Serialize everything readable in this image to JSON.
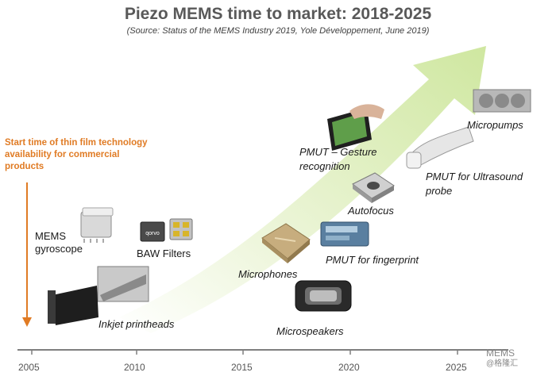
{
  "title": "Piezo MEMS time to market: 2018-2025",
  "source": "(Source: Status of the MEMS Industry 2019, Yole Développement, June 2019)",
  "start_note": "Start time of thin film technology availability for commercial products",
  "products": {
    "mems_gyroscope": "MEMS gyroscope",
    "baw_filters": "BAW Filters",
    "inkjet_printheads": "Inkjet printheads",
    "microphones": "Microphones",
    "microspeakers": "Microspeakers",
    "pmut_fingerprint": "PMUT for fingerprint",
    "autofocus": "Autofocus",
    "pmut_gesture": "PMUT – Gesture recognition",
    "pmut_ultrasound": "PMUT for Ultrasound probe",
    "micropumps": "Micropumps"
  },
  "baw_chip_text": "qorvo",
  "timeline": {
    "years": [
      "2005",
      "2010",
      "2015",
      "2020",
      "2025"
    ]
  },
  "watermark": {
    "line1": "MEMS",
    "line2": "@格隆汇"
  },
  "colors": {
    "arrow": "#d6ebb0",
    "accent": "#e07b24",
    "axis": "#7f7f7f"
  }
}
